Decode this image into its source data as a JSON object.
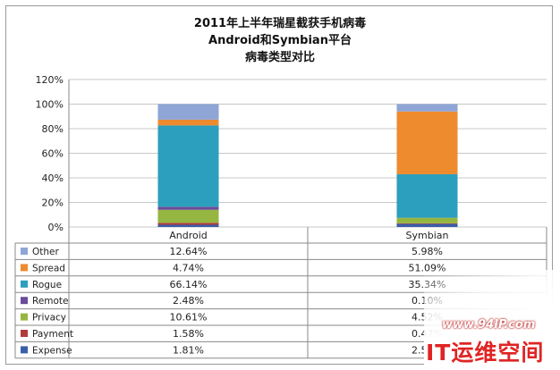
{
  "chart_data": {
    "type": "bar",
    "stacked": true,
    "title": [
      "2011年上半年瑞星截获手机病毒",
      "Android和Symbian平台",
      "病毒类型对比"
    ],
    "categories": [
      "Android",
      "Symbian"
    ],
    "ylim": [
      0,
      120
    ],
    "yticks": [
      "0%",
      "20%",
      "40%",
      "60%",
      "80%",
      "100%",
      "120%"
    ],
    "grid": true,
    "legend": "data-table",
    "series": [
      {
        "name": "Other",
        "color": "#8ea5d6",
        "values": [
          12.64,
          5.98
        ],
        "labels": [
          "12.64%",
          "5.98%"
        ]
      },
      {
        "name": "Spread",
        "color": "#ee8b2f",
        "values": [
          4.74,
          51.09
        ],
        "labels": [
          "4.74%",
          "51.09%"
        ]
      },
      {
        "name": "Rogue",
        "color": "#2b9fbd",
        "values": [
          66.14,
          35.34
        ],
        "labels": [
          "66.14%",
          "35.34%"
        ]
      },
      {
        "name": "Remote",
        "color": "#6b4c9a",
        "values": [
          2.48,
          0.1
        ],
        "labels": [
          "2.48%",
          "0.10%"
        ]
      },
      {
        "name": "Privacy",
        "color": "#95b640",
        "values": [
          10.61,
          4.52
        ],
        "labels": [
          "10.61%",
          "4.52%"
        ]
      },
      {
        "name": "Payment",
        "color": "#b03a3a",
        "values": [
          1.58,
          0.47
        ],
        "labels": [
          "1.58%",
          "0.47%"
        ]
      },
      {
        "name": "Expense",
        "color": "#3a5fa8",
        "values": [
          1.81,
          2.5
        ],
        "labels": [
          "1.81%",
          "2.50%"
        ]
      }
    ]
  },
  "watermark": {
    "site": "www.94IP.com",
    "brand": "IT运维空间"
  }
}
